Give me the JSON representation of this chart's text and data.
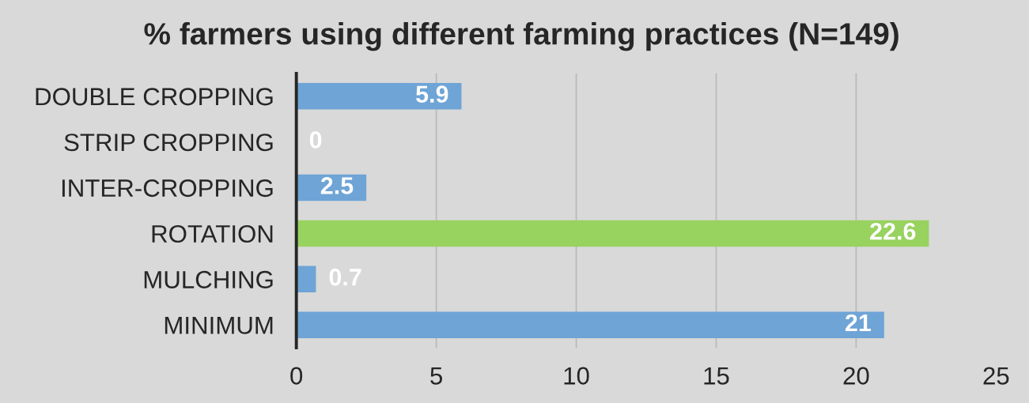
{
  "chart_data": {
    "type": "bar",
    "orientation": "horizontal",
    "title": "% farmers using different farming practices (N=149)",
    "categories": [
      "DOUBLE CROPPING",
      "STRIP CROPPING",
      "INTER-CROPPING",
      "ROTATION",
      "MULCHING",
      "MINIMUM"
    ],
    "values": [
      5.9,
      0,
      2.5,
      22.6,
      0.7,
      21
    ],
    "colors": [
      "#6fa4d6",
      "#6fa4d6",
      "#6fa4d6",
      "#98d25f",
      "#6fa4d6",
      "#6fa4d6"
    ],
    "xlim": [
      0,
      25
    ],
    "xticks": [
      0,
      5,
      10,
      15,
      20,
      25
    ],
    "grid": "x",
    "data_labels": true,
    "legend": false
  }
}
